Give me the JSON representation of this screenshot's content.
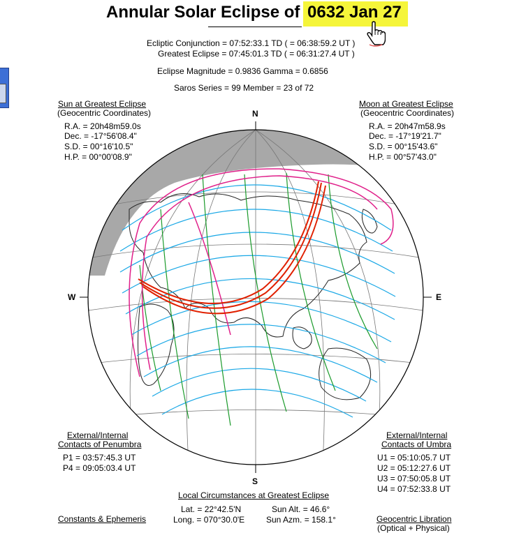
{
  "header": {
    "title": "Annular Solar Eclipse of",
    "date": "0632 Jan 27",
    "ecliptic_conjunction": "Ecliptic Conjunction =  07:52:33.1 TD   ( = 06:38:59.2 UT )",
    "greatest_eclipse": "Greatest Eclipse =  07:45:01.3 TD   ( = 06:31:27.4 UT )",
    "magnitude_gamma": "Eclipse Magnitude = 0.9836       Gamma = 0.6856",
    "saros": "Saros Series =   99       Member = 23 of 72"
  },
  "sun": {
    "heading": "Sun at Greatest Eclipse",
    "subheading": "(Geocentric Coordinates)",
    "ra": "R.A. = 20h48m59.0s",
    "dec": "Dec. = -17°56'08.4\"",
    "sd": "S.D. = 00°16'10.5\"",
    "hp": "H.P. = 00°00'08.9\""
  },
  "moon": {
    "heading": "Moon at Greatest Eclipse",
    "subheading": "(Geocentric Coordinates)",
    "ra": "R.A. = 20h47m58.9s",
    "dec": "Dec. = -17°19'21.7\"",
    "sd": "S.D. = 00°15'43.6\"",
    "hp": "H.P. = 00°57'43.0\""
  },
  "compass": {
    "n": "N",
    "s": "S",
    "w": "W",
    "e": "E"
  },
  "penumbra": {
    "heading1": "External/Internal",
    "heading2": "Contacts of Penumbra",
    "p1": "P1 = 03:57:45.3 UT",
    "p4": "P4 = 09:05:03.4 UT"
  },
  "umbra": {
    "heading1": "External/Internal",
    "heading2": "Contacts of Umbra",
    "u1": "U1 = 05:10:05.7 UT",
    "u2": "U2 = 05:12:27.6 UT",
    "u3": "U3 = 07:50:05.8 UT",
    "u4": "U4 = 07:52:33.8 UT"
  },
  "local": {
    "heading": "Local Circumstances at Greatest Eclipse",
    "lat": "Lat. =   22°42.5'N",
    "long": "Long. = 070°30.0'E",
    "sun_alt": "Sun Alt. =   46.6°",
    "sun_azm": "Sun Azm. = 158.1°"
  },
  "footer": {
    "constants": "Constants & Ephemeris",
    "libration1": "Geocentric Libration",
    "libration2": "(Optical + Physical)"
  },
  "colors": {
    "highlight": "#f5f53a",
    "central_path": "#e02000",
    "penumbra_limits": "#e0208a",
    "time_curves_cyan": "#1aa8e6",
    "time_curves_green": "#1a9a2a",
    "night": "#a8a8a8"
  }
}
